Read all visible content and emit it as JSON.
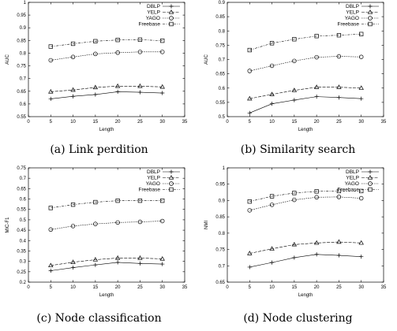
{
  "chart_data": [
    {
      "type": "line",
      "caption": "(a)  Link perdition",
      "xlabel": "Length",
      "ylabel": "AUC",
      "xlim": [
        0,
        35
      ],
      "ylim": [
        0.55,
        1.0
      ],
      "xticks": [
        0,
        5,
        10,
        15,
        20,
        25,
        30,
        35
      ],
      "yticks": [
        0.55,
        0.6,
        0.65,
        0.7,
        0.75,
        0.8,
        0.85,
        0.9,
        0.95,
        1.0
      ],
      "ytick_labels": [
        "0.55",
        "0.6",
        "0.65",
        "0.7",
        "0.75",
        "0.8",
        "0.85",
        "0.9",
        "0.95",
        "1"
      ],
      "legend_position": "top-right",
      "x": [
        5,
        10,
        15,
        20,
        25,
        30
      ],
      "series": [
        {
          "name": "DBLP",
          "marker": "plus",
          "values": [
            0.62,
            0.63,
            0.637,
            0.648,
            0.646,
            0.643
          ]
        },
        {
          "name": "YELP",
          "marker": "triangle",
          "values": [
            0.648,
            0.655,
            0.665,
            0.67,
            0.67,
            0.667
          ]
        },
        {
          "name": "YAGO",
          "marker": "circle",
          "values": [
            0.772,
            0.785,
            0.797,
            0.802,
            0.805,
            0.805
          ]
        },
        {
          "name": "Freebase",
          "marker": "square",
          "values": [
            0.826,
            0.837,
            0.847,
            0.852,
            0.853,
            0.849
          ]
        }
      ]
    },
    {
      "type": "line",
      "caption": "(b)  Similarity search",
      "xlabel": "Length",
      "ylabel": "AUC",
      "xlim": [
        0,
        35
      ],
      "ylim": [
        0.5,
        0.9
      ],
      "xticks": [
        0,
        5,
        10,
        15,
        20,
        25,
        30,
        35
      ],
      "yticks": [
        0.5,
        0.55,
        0.6,
        0.65,
        0.7,
        0.75,
        0.8,
        0.85,
        0.9
      ],
      "ytick_labels": [
        "0.5",
        "0.55",
        "0.6",
        "0.65",
        "0.7",
        "0.75",
        "0.8",
        "0.85",
        "0.9"
      ],
      "legend_position": "top-right",
      "x": [
        5,
        10,
        15,
        20,
        25,
        30
      ],
      "series": [
        {
          "name": "DBLP",
          "marker": "plus",
          "values": [
            0.513,
            0.545,
            0.558,
            0.57,
            0.567,
            0.563
          ]
        },
        {
          "name": "YELP",
          "marker": "triangle",
          "values": [
            0.563,
            0.578,
            0.592,
            0.603,
            0.603,
            0.6
          ]
        },
        {
          "name": "YAGO",
          "marker": "circle",
          "values": [
            0.66,
            0.678,
            0.695,
            0.708,
            0.711,
            0.709
          ]
        },
        {
          "name": "Freebase",
          "marker": "square",
          "values": [
            0.733,
            0.757,
            0.771,
            0.782,
            0.785,
            0.789
          ]
        }
      ]
    },
    {
      "type": "line",
      "caption": "(c)  Node classification",
      "xlabel": "Length",
      "ylabel": "MIC-F1",
      "xlim": [
        0,
        35
      ],
      "ylim": [
        0.2,
        0.75
      ],
      "xticks": [
        0,
        5,
        10,
        15,
        20,
        25,
        30,
        35
      ],
      "yticks": [
        0.2,
        0.25,
        0.3,
        0.35,
        0.4,
        0.45,
        0.5,
        0.55,
        0.6,
        0.65,
        0.7,
        0.75
      ],
      "ytick_labels": [
        "0.2",
        "0.25",
        "0.3",
        "0.35",
        "0.4",
        "0.45",
        "0.5",
        "0.55",
        "0.6",
        "0.65",
        "0.7",
        "0.75"
      ],
      "legend_position": "top-right",
      "x": [
        5,
        10,
        15,
        20,
        25,
        30
      ],
      "series": [
        {
          "name": "DBLP",
          "marker": "plus",
          "values": [
            0.255,
            0.27,
            0.283,
            0.295,
            0.29,
            0.287
          ]
        },
        {
          "name": "YELP",
          "marker": "triangle",
          "values": [
            0.28,
            0.296,
            0.308,
            0.316,
            0.316,
            0.312
          ]
        },
        {
          "name": "YAGO",
          "marker": "circle",
          "values": [
            0.453,
            0.47,
            0.48,
            0.487,
            0.49,
            0.494
          ]
        },
        {
          "name": "Freebase",
          "marker": "square",
          "values": [
            0.557,
            0.573,
            0.585,
            0.592,
            0.592,
            0.592
          ]
        }
      ]
    },
    {
      "type": "line",
      "caption": "(d)  Node clustering",
      "xlabel": "Length",
      "ylabel": "NMI",
      "xlim": [
        0,
        35
      ],
      "ylim": [
        0.65,
        1.0
      ],
      "xticks": [
        0,
        5,
        10,
        15,
        20,
        25,
        30,
        35
      ],
      "yticks": [
        0.65,
        0.7,
        0.75,
        0.8,
        0.85,
        0.9,
        0.95,
        1.0
      ],
      "ytick_labels": [
        "0.65",
        "0.7",
        "0.75",
        "0.8",
        "0.85",
        "0.9",
        "0.95",
        "1"
      ],
      "legend_position": "top-right",
      "x": [
        5,
        10,
        15,
        20,
        25,
        30
      ],
      "series": [
        {
          "name": "DBLP",
          "marker": "plus",
          "values": [
            0.696,
            0.71,
            0.725,
            0.735,
            0.732,
            0.728
          ]
        },
        {
          "name": "YELP",
          "marker": "triangle",
          "values": [
            0.738,
            0.752,
            0.765,
            0.77,
            0.773,
            0.77
          ]
        },
        {
          "name": "YAGO",
          "marker": "circle",
          "values": [
            0.87,
            0.887,
            0.902,
            0.91,
            0.911,
            0.907
          ]
        },
        {
          "name": "Freebase",
          "marker": "square",
          "values": [
            0.897,
            0.913,
            0.923,
            0.928,
            0.929,
            0.929
          ]
        }
      ]
    }
  ]
}
